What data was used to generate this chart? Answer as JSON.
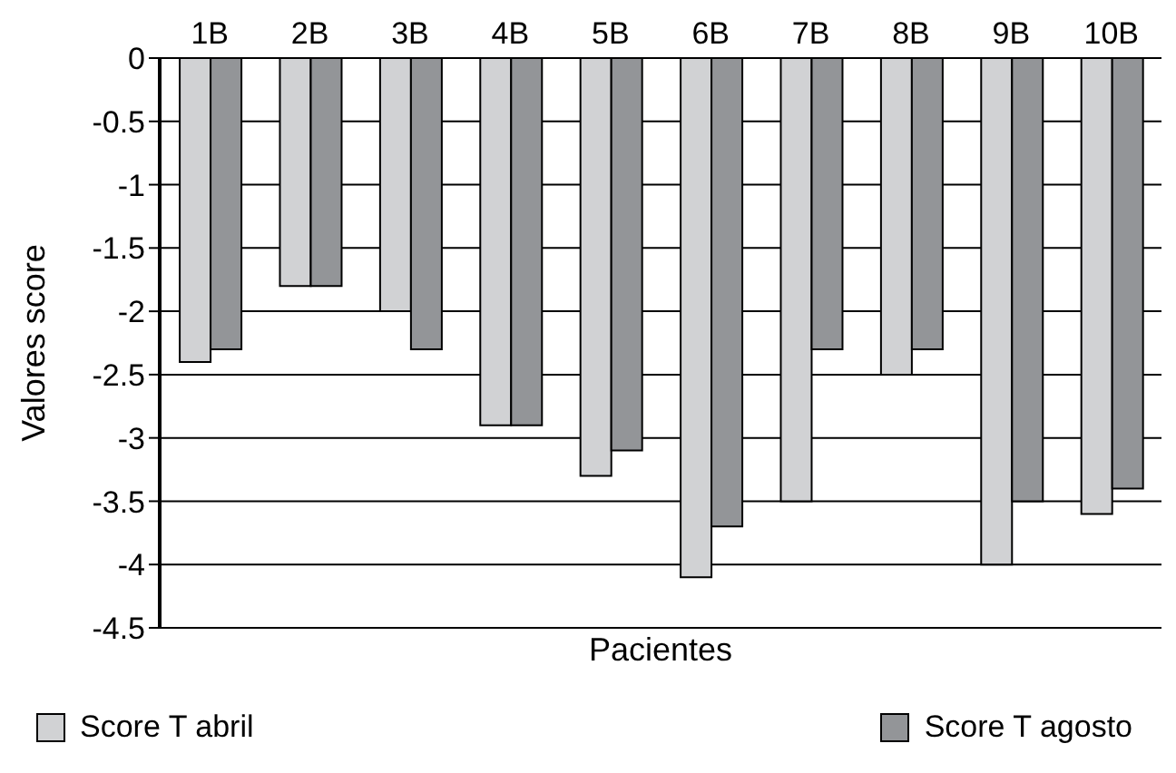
{
  "chart_data": {
    "type": "bar",
    "xlabel": "Pacientes",
    "ylabel": "Valores score",
    "categories": [
      "1B",
      "2B",
      "3B",
      "4B",
      "5B",
      "6B",
      "7B",
      "8B",
      "9B",
      "10B"
    ],
    "series": [
      {
        "name": "Score T abril",
        "color": "#d1d2d4",
        "values": [
          -2.4,
          -1.8,
          -2,
          -2.9,
          -3.3,
          -4.1,
          -3.5,
          -2.5,
          -4,
          -3.6
        ]
      },
      {
        "name": "Score T agosto",
        "color": "#939598",
        "values": [
          -2.3,
          -1.8,
          -2.3,
          -2.9,
          -3.1,
          -3.7,
          -2.3,
          -2.3,
          -3.5,
          -3.4
        ]
      }
    ],
    "ylim": [
      -4.5,
      0
    ],
    "yticks": [
      0,
      -0.5,
      -1,
      -1.5,
      -2,
      -2.5,
      -3,
      -3.5,
      -4,
      -4.5
    ],
    "grid": "y",
    "legend": "bottom"
  }
}
